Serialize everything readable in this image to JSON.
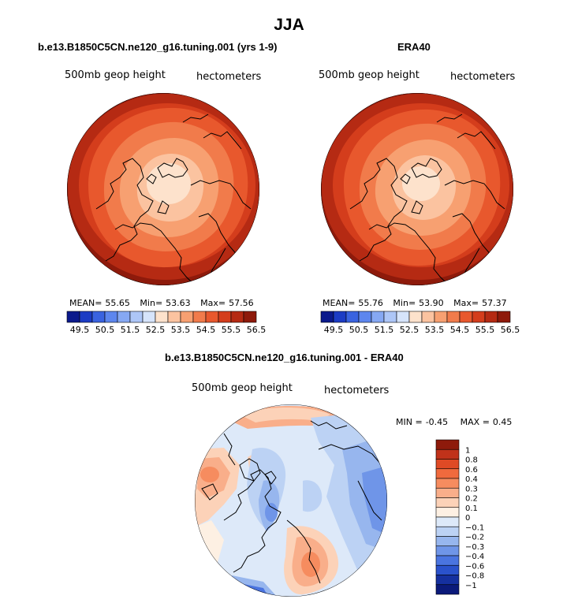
{
  "figure": {
    "title": "JJA",
    "colors": {
      "ice": "#f4f4f4",
      "coast": "#000000"
    }
  },
  "chart_data": [
    {
      "type": "heatmap",
      "title": "b.e13.B1850C5CN.ne120_g16.tuning.001 (yrs 1-9)",
      "variable_label": "500mb geop height",
      "units_label": "hectometers",
      "projection": "polar stereographic (north pole)",
      "stats": {
        "mean_label": "MEAN=",
        "mean": "55.65",
        "min_label": "Min=",
        "min": "53.63",
        "max_label": "Max=",
        "max": "57.56"
      },
      "colorbar": {
        "orientation": "horizontal",
        "tick_labels": [
          "49.5",
          "50.5",
          "51.5",
          "52.5",
          "53.5",
          "54.5",
          "55.5",
          "56.5"
        ],
        "colors": [
          "#0b1a8c",
          "#1c3cc4",
          "#3a63e0",
          "#5d86ee",
          "#86a8f3",
          "#adc6f7",
          "#d6e4fb",
          "#fde2cc",
          "#fbc3a0",
          "#f7a071",
          "#f17b4b",
          "#e8582d",
          "#d43d1c",
          "#b52a13",
          "#8e1a0b"
        ]
      }
    },
    {
      "type": "heatmap",
      "title": "ERA40",
      "variable_label": "500mb geop height",
      "units_label": "hectometers",
      "projection": "polar stereographic (north pole)",
      "stats": {
        "mean_label": "MEAN=",
        "mean": "55.76",
        "min_label": "Min=",
        "min": "53.90",
        "max_label": "Max=",
        "max": "57.37"
      },
      "colorbar": {
        "orientation": "horizontal",
        "tick_labels": [
          "49.5",
          "50.5",
          "51.5",
          "52.5",
          "53.5",
          "54.5",
          "55.5",
          "56.5"
        ],
        "colors": [
          "#0b1a8c",
          "#1c3cc4",
          "#3a63e0",
          "#5d86ee",
          "#86a8f3",
          "#adc6f7",
          "#d6e4fb",
          "#fde2cc",
          "#fbc3a0",
          "#f7a071",
          "#f17b4b",
          "#e8582d",
          "#d43d1c",
          "#b52a13",
          "#8e1a0b"
        ]
      }
    },
    {
      "type": "heatmap",
      "title": "b.e13.B1850C5CN.ne120_g16.tuning.001 - ERA40",
      "variable_label": "500mb geop height",
      "units_label": "hectometers",
      "projection": "polar stereographic (north pole)",
      "stats": {
        "min_label": "MIN =",
        "min": "-0.45",
        "max_label": "MAX =",
        "max": "0.45"
      },
      "colorbar": {
        "orientation": "vertical",
        "tick_labels": [
          "1",
          "0.8",
          "0.6",
          "0.4",
          "0.3",
          "0.2",
          "0.1",
          "0",
          "−0.1",
          "−0.2",
          "−0.3",
          "−0.4",
          "−0.6",
          "−0.8",
          "−1"
        ],
        "colors": [
          "#8e1a0b",
          "#c0321a",
          "#df4a25",
          "#f06a3d",
          "#f68c5f",
          "#f9ae8a",
          "#fcd2b8",
          "#fdf0e3",
          "#dde9f9",
          "#bcd2f4",
          "#97b6ee",
          "#6f95e8",
          "#4a74e0",
          "#2a52cc",
          "#15309f",
          "#0b1a7a"
        ]
      }
    }
  ]
}
